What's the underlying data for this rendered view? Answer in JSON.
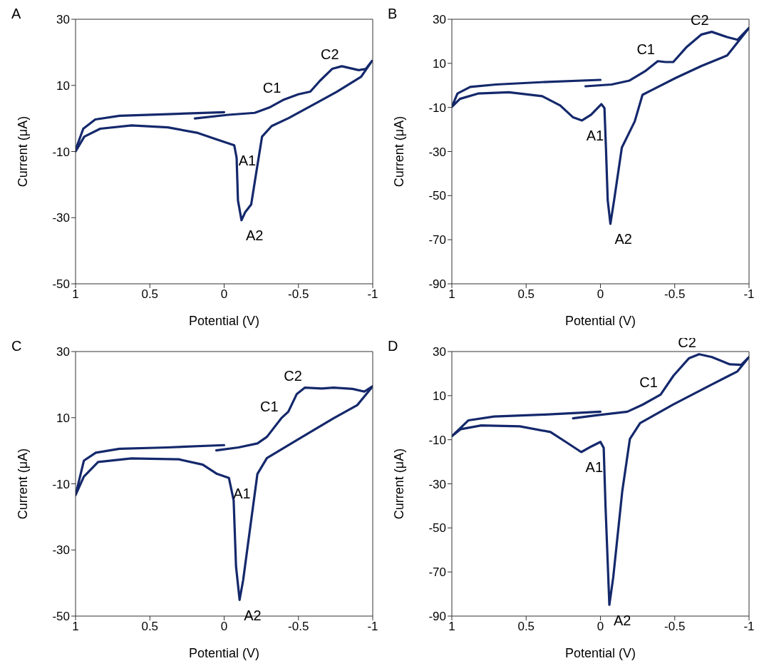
{
  "chart_data": [
    {
      "type": "line",
      "title": "A",
      "xlabel": "Potential (V)",
      "ylabel": "Current (μA)",
      "xlim": [
        1,
        -1
      ],
      "xticks": [
        1,
        0.5,
        0,
        -0.5,
        -1
      ],
      "ylim": [
        -50,
        30
      ],
      "yticks": [
        -50,
        -30,
        -10,
        10,
        30
      ],
      "grid": false,
      "legend": false,
      "marker": "none",
      "line_style": "solid",
      "series": [
        {
          "color": "#14286b",
          "x": [
            0.0,
            0.379,
            0.704,
            0.867,
            0.948,
            0.997,
            1.0,
            0.941,
            0.834,
            0.623,
            0.379,
            0.184,
            0.054,
            -0.068,
            -0.084,
            -0.093,
            -0.117,
            -0.141,
            -0.182,
            -0.215,
            -0.255,
            -0.32,
            -0.434,
            -0.597,
            -0.759,
            -0.922,
            -0.995,
            -0.954,
            -0.906,
            -0.792,
            -0.727,
            -0.645,
            -0.58,
            -0.499,
            -0.402,
            -0.304,
            -0.206,
            -0.028,
            0.197
          ],
          "values": [
            1.9,
            1.3,
            0.8,
            -0.3,
            -3.1,
            -9.1,
            -10,
            -5.5,
            -3.1,
            -2.1,
            -2.7,
            -4.3,
            -6.3,
            -8.1,
            -11.9,
            -24.8,
            -30.8,
            -28.4,
            -26.0,
            -16.7,
            -5.5,
            -2.3,
            0.1,
            4.1,
            8.1,
            12.6,
            17.4,
            15.0,
            14.6,
            15.8,
            15.0,
            11.4,
            8.1,
            7.3,
            5.7,
            3.3,
            1.7,
            1.1,
            0.0
          ]
        }
      ],
      "annotations": [
        {
          "text": "A1",
          "x": -0.068,
          "y": -8.1
        },
        {
          "text": "A2",
          "x": -0.117,
          "y": -30.8
        },
        {
          "text": "C1",
          "x": -0.402,
          "y": 5.7
        },
        {
          "text": "C2",
          "x": -0.792,
          "y": 15.8
        }
      ]
    },
    {
      "type": "line",
      "title": "B",
      "xlabel": "Potential (V)",
      "ylabel": "Current (μA)",
      "xlim": [
        1,
        -1
      ],
      "xticks": [
        1,
        0.5,
        0,
        -0.5,
        -1
      ],
      "ylim": [
        -90,
        30
      ],
      "yticks": [
        -90,
        -70,
        -50,
        -30,
        -10,
        10,
        30
      ],
      "grid": false,
      "legend": false,
      "marker": "none",
      "line_style": "solid",
      "series": [
        {
          "color": "#14286b",
          "x": [
            0.0,
            0.357,
            0.703,
            0.876,
            0.962,
            1.0,
            0.945,
            0.824,
            0.616,
            0.392,
            0.271,
            0.184,
            0.124,
            0.063,
            -0.006,
            -0.027,
            -0.037,
            -0.049,
            -0.067,
            -0.092,
            -0.144,
            -0.188,
            -0.231,
            -0.283,
            -0.352,
            -0.507,
            -0.68,
            -0.853,
            -1.0,
            -0.922,
            -0.853,
            -0.749,
            -0.68,
            -0.577,
            -0.49,
            -0.438,
            -0.386,
            -0.3,
            -0.196,
            -0.075,
            0.101
          ],
          "values": [
            2.5,
            1.6,
            0.4,
            -0.7,
            -3.7,
            -9.7,
            -6.1,
            -3.7,
            -3.1,
            -4.9,
            -9.1,
            -14.5,
            -15.9,
            -13.3,
            -8.5,
            -10.3,
            -28.2,
            -52.1,
            -62.8,
            -52.1,
            -28.2,
            -22.2,
            -16.3,
            -4.3,
            -1.9,
            3.4,
            8.8,
            13.6,
            26.1,
            20.7,
            21.9,
            24.3,
            23.1,
            17.2,
            10.6,
            10.6,
            11.0,
            6.4,
            2.2,
            0.4,
            -0.4
          ]
        }
      ],
      "annotations": [
        {
          "text": "A1",
          "x": 0.124,
          "y": -15.9
        },
        {
          "text": "A2",
          "x": -0.067,
          "y": -62.8
        },
        {
          "text": "C1",
          "x": -0.386,
          "y": 11.0
        },
        {
          "text": "C2",
          "x": -0.749,
          "y": 24.3
        }
      ]
    },
    {
      "type": "line",
      "title": "C",
      "xlabel": "Potential (V)",
      "ylabel": "Current (μA)",
      "xlim": [
        1,
        -1
      ],
      "xticks": [
        1,
        0.5,
        0,
        -0.5,
        -1
      ],
      "ylim": [
        -50,
        30
      ],
      "yticks": [
        -50,
        -30,
        -10,
        10,
        30
      ],
      "grid": false,
      "legend": false,
      "marker": "none",
      "line_style": "solid",
      "series": [
        {
          "color": "#14286b",
          "x": [
            0.0,
            0.384,
            0.704,
            0.864,
            0.944,
            1.0,
            0.944,
            0.848,
            0.624,
            0.304,
            0.144,
            0.048,
            -0.032,
            -0.064,
            -0.08,
            -0.104,
            -0.128,
            -0.176,
            -0.224,
            -0.288,
            -0.496,
            -0.736,
            -0.896,
            -1.0,
            -0.944,
            -0.864,
            -0.736,
            -0.656,
            -0.544,
            -0.488,
            -0.432,
            -0.384,
            -0.288,
            -0.224,
            -0.096,
            0.053
          ],
          "values": [
            1.7,
            1.0,
            0.6,
            -0.6,
            -3.0,
            -13.4,
            -7.8,
            -3.4,
            -2.3,
            -2.6,
            -4.2,
            -7.0,
            -8.2,
            -15.0,
            -35.0,
            -45.1,
            -39.1,
            -23.0,
            -7.0,
            -2.2,
            3.4,
            9.8,
            13.8,
            19.5,
            17.9,
            18.7,
            19.1,
            18.8,
            19.1,
            17.1,
            11.8,
            9.8,
            4.2,
            2.2,
            1.0,
            0.1
          ]
        }
      ],
      "annotations": [
        {
          "text": "A1",
          "x": -0.032,
          "y": -8.2
        },
        {
          "text": "A2",
          "x": -0.104,
          "y": -45.1
        },
        {
          "text": "C1",
          "x": -0.384,
          "y": 9.8
        },
        {
          "text": "C2",
          "x": -0.544,
          "y": 19.1
        }
      ]
    },
    {
      "type": "line",
      "title": "D",
      "xlabel": "Potential (V)",
      "ylabel": "Current (μA)",
      "xlim": [
        1,
        -1
      ],
      "xticks": [
        1,
        0.5,
        0,
        -0.5,
        -1
      ],
      "ylim": [
        -90,
        30
      ],
      "yticks": [
        -90,
        -70,
        -50,
        -30,
        -10,
        10,
        30
      ],
      "grid": false,
      "legend": false,
      "marker": "none",
      "line_style": "solid",
      "series": [
        {
          "color": "#14286b",
          "x": [
            0.0,
            0.371,
            0.716,
            0.888,
            1.0,
            0.94,
            0.802,
            0.543,
            0.336,
            0.233,
            0.129,
            0.06,
            0.0,
            -0.022,
            -0.034,
            -0.06,
            -0.086,
            -0.147,
            -0.198,
            -0.267,
            -0.491,
            -0.75,
            -0.922,
            -1.0,
            -0.948,
            -0.871,
            -0.75,
            -0.664,
            -0.595,
            -0.491,
            -0.405,
            -0.284,
            -0.181,
            0.026,
            0.184
          ],
          "values": [
            2.7,
            1.4,
            0.5,
            -1.2,
            -8.4,
            -5.2,
            -3.5,
            -3.9,
            -6.5,
            -11.0,
            -15.6,
            -13.0,
            -11.0,
            -13.7,
            -39.8,
            -84.9,
            -72.5,
            -33.3,
            -9.7,
            -2.5,
            6.0,
            15.1,
            21.0,
            27.5,
            24.0,
            24.2,
            27.5,
            28.8,
            26.9,
            19.0,
            10.5,
            5.9,
            2.7,
            1.1,
            -0.3
          ]
        }
      ],
      "annotations": [
        {
          "text": "A1",
          "x": 0.129,
          "y": -15.6
        },
        {
          "text": "A2",
          "x": -0.06,
          "y": -84.9
        },
        {
          "text": "C1",
          "x": -0.405,
          "y": 10.5
        },
        {
          "text": "C2",
          "x": -0.664,
          "y": 28.8
        }
      ]
    }
  ]
}
